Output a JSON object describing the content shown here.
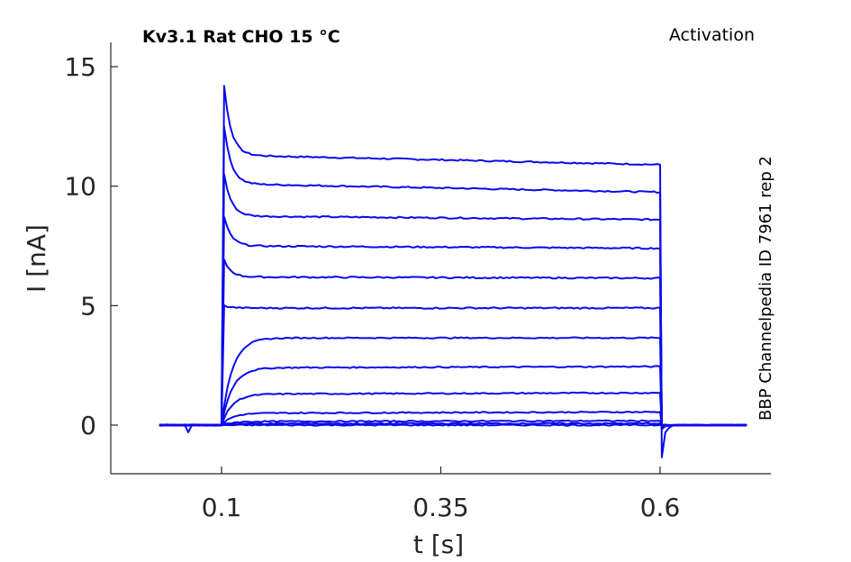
{
  "chart_data": {
    "type": "line",
    "title": "Kv3.1  Rat  CHO  15 °C",
    "corner_label": "Activation",
    "side_label": "BBP Channelpedia ID 7961 rep 2",
    "xlabel": "t [s]",
    "ylabel": "I [nA]",
    "xlim": [
      0.0,
      0.75
    ],
    "ylim": [
      -2,
      16
    ],
    "xticks": [
      0.1,
      0.35,
      0.6
    ],
    "xtick_labels": [
      "0.1",
      "0.35",
      "0.6"
    ],
    "yticks": [
      0,
      5,
      10,
      15
    ],
    "ytick_labels": [
      "0",
      "5",
      "10",
      "15"
    ],
    "grid": false,
    "trace_color": "#0a0aeb",
    "pulse": {
      "baseline_start": 0.03,
      "step_on": 0.1,
      "step_off": 0.6,
      "end": 0.7
    },
    "series": [
      {
        "peak": 14.2,
        "steady_start": 11.3,
        "steady_end": 10.9
      },
      {
        "peak": 12.5,
        "steady_start": 10.1,
        "steady_end": 9.75
      },
      {
        "peak": 10.5,
        "steady_start": 8.75,
        "steady_end": 8.6
      },
      {
        "peak": 8.7,
        "steady_start": 7.5,
        "steady_end": 7.4
      },
      {
        "peak": 6.9,
        "steady_start": 6.2,
        "steady_end": 6.15
      },
      {
        "peak": 5.0,
        "steady_start": 4.9,
        "steady_end": 4.9
      },
      {
        "peak": 3.6,
        "steady_start": 3.65,
        "steady_end": 3.65
      },
      {
        "peak": 2.3,
        "steady_start": 2.4,
        "steady_end": 2.45
      },
      {
        "peak": 1.2,
        "steady_start": 1.3,
        "steady_end": 1.35
      },
      {
        "peak": 0.4,
        "steady_start": 0.5,
        "steady_end": 0.55
      },
      {
        "peak": 0.12,
        "steady_start": 0.15,
        "steady_end": 0.18
      },
      {
        "peak": 0.05,
        "steady_start": 0.06,
        "steady_end": 0.07
      },
      {
        "peak": 0.0,
        "steady_start": 0.0,
        "steady_end": 0.0
      }
    ],
    "artifacts": {
      "pre_spike": {
        "t": 0.063,
        "value": -0.3
      },
      "tail_dip": {
        "t": 0.603,
        "value": -1.35
      }
    }
  }
}
